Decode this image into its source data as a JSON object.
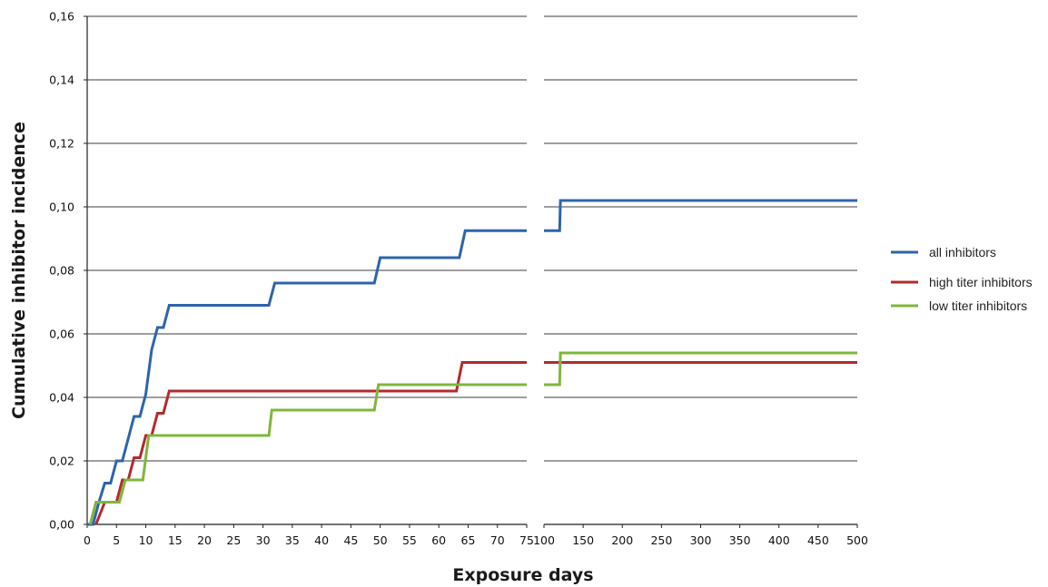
{
  "chart_data": {
    "type": "line",
    "xlabel": "Exposure days",
    "ylabel": "Cumulative inhibitor incidence",
    "ylim": [
      0,
      0.16
    ],
    "yticks": [
      "0,00",
      "0,02",
      "0,04",
      "0,06",
      "0,08",
      "0,10",
      "0,12",
      "0,14",
      "0,16"
    ],
    "ytick_values": [
      0,
      0.02,
      0.04,
      0.06,
      0.08,
      0.1,
      0.12,
      0.14,
      0.16
    ],
    "x_axis": "broken: linear 0-75, then 100-500",
    "xlim_left": [
      0,
      75
    ],
    "xlim_right": [
      100,
      500
    ],
    "xticks_left": [
      "0",
      "5",
      "10",
      "15",
      "20",
      "25",
      "30",
      "35",
      "40",
      "45",
      "50",
      "55",
      "60",
      "65",
      "70",
      "75"
    ],
    "xtick_values_left": [
      0,
      5,
      10,
      15,
      20,
      25,
      30,
      35,
      40,
      45,
      50,
      55,
      60,
      65,
      70,
      75
    ],
    "xticks_right": [
      "100",
      "150",
      "200",
      "250",
      "300",
      "350",
      "400",
      "450",
      "500"
    ],
    "xtick_values_right": [
      100,
      150,
      200,
      250,
      300,
      350,
      400,
      450,
      500
    ],
    "grid": "horizontal",
    "legend_position": "right",
    "series": [
      {
        "name": "all inhibitors",
        "color": "#2e64ac",
        "step_points": [
          [
            0,
            0.0
          ],
          [
            1,
            0.0
          ],
          [
            2,
            0.007
          ],
          [
            3,
            0.013
          ],
          [
            4,
            0.013
          ],
          [
            5,
            0.02
          ],
          [
            6,
            0.02
          ],
          [
            7,
            0.027
          ],
          [
            8,
            0.034
          ],
          [
            9,
            0.034
          ],
          [
            10,
            0.041
          ],
          [
            11,
            0.055
          ],
          [
            12,
            0.062
          ],
          [
            13,
            0.062
          ],
          [
            14,
            0.069
          ],
          [
            31,
            0.069
          ],
          [
            32,
            0.076
          ],
          [
            49,
            0.076
          ],
          [
            50,
            0.084
          ],
          [
            63.5,
            0.084
          ],
          [
            64.5,
            0.0925
          ],
          [
            75,
            0.0925
          ]
        ],
        "step_points_right": [
          [
            100,
            0.0925
          ],
          [
            120,
            0.0925
          ],
          [
            121,
            0.102
          ],
          [
            500,
            0.102
          ]
        ]
      },
      {
        "name": "high titer inhibitors",
        "color": "#b22b2f",
        "step_points": [
          [
            1.5,
            0.0
          ],
          [
            3,
            0.007
          ],
          [
            5,
            0.007
          ],
          [
            6,
            0.014
          ],
          [
            7,
            0.014
          ],
          [
            8,
            0.021
          ],
          [
            9,
            0.021
          ],
          [
            10,
            0.028
          ],
          [
            11,
            0.028
          ],
          [
            12,
            0.035
          ],
          [
            13,
            0.035
          ],
          [
            14,
            0.042
          ],
          [
            63,
            0.042
          ],
          [
            64,
            0.051
          ],
          [
            75,
            0.051
          ]
        ],
        "step_points_right": [
          [
            100,
            0.051
          ],
          [
            500,
            0.051
          ]
        ]
      },
      {
        "name": "low titer inhibitors",
        "color": "#7fb73a",
        "step_points": [
          [
            0.5,
            0.0
          ],
          [
            1.5,
            0.007
          ],
          [
            5.5,
            0.007
          ],
          [
            6.5,
            0.014
          ],
          [
            9.5,
            0.014
          ],
          [
            10.5,
            0.028
          ],
          [
            31,
            0.028
          ],
          [
            31.5,
            0.036
          ],
          [
            49,
            0.036
          ],
          [
            49.7,
            0.044
          ],
          [
            75,
            0.044
          ]
        ],
        "step_points_right": [
          [
            100,
            0.044
          ],
          [
            120,
            0.044
          ],
          [
            121,
            0.054
          ],
          [
            500,
            0.054
          ]
        ]
      }
    ]
  }
}
